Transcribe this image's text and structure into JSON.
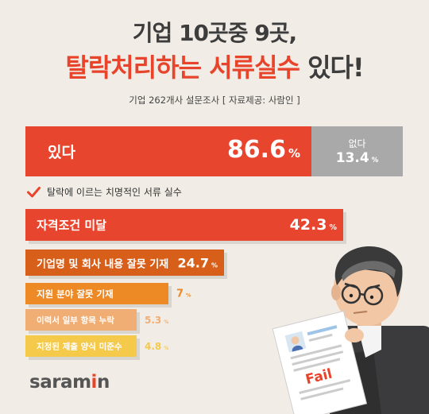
{
  "title": {
    "line1": "기업 10곳중 9곳,",
    "line2_highlight": "탈락처리하는 서류실수",
    "line2_rest": " 있다!"
  },
  "subtitle": "기업 262개사 설문조사 [ 자료제공: 사람인 ]",
  "top_bar": {
    "yes_label": "있다",
    "yes_value": "86.6",
    "no_label": "없다",
    "no_value": "13.4",
    "pct_symbol": "%"
  },
  "section_label": "탈락에 이르는 치명적인 서류 실수",
  "chart_data": [
    {
      "type": "bar",
      "orientation": "horizontal",
      "stacked": true,
      "categories": [
        "있다",
        "없다"
      ],
      "values": [
        86.6,
        13.4
      ],
      "unit": "%",
      "colors": [
        "#e8452e",
        "#a9a9a9"
      ]
    },
    {
      "type": "bar",
      "orientation": "horizontal",
      "title": "탈락에 이르는 치명적인 서류 실수",
      "categories": [
        "자격조건 미달",
        "기업명 및 회사 내용 잘못 기재",
        "지원 분야 잘못 기재",
        "이력서 일부 항목 누락",
        "지정된 제출 양식 미준수"
      ],
      "values": [
        42.3,
        24.7,
        7,
        5.3,
        4.8
      ],
      "unit": "%",
      "colors": [
        "#e8452e",
        "#d85f1a",
        "#ed8a25",
        "#f0ad74",
        "#f5c94a"
      ],
      "value_colors": [
        "#ffffff",
        "#ffffff",
        "#ed8a25",
        "#f0ad74",
        "#f5c94a"
      ]
    }
  ],
  "illustration": {
    "paper_text": "Fail",
    "icon": "businessman-holding-resume"
  },
  "logo": {
    "text_a": "saram",
    "text_b": "i",
    "text_c": "n"
  }
}
